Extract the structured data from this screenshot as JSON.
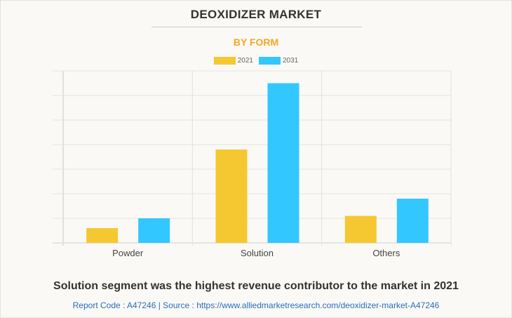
{
  "chart_data": {
    "type": "bar",
    "title": "DEOXIDIZER MARKET",
    "subtitle": "BY FORM",
    "categories": [
      "Powder",
      "Solution",
      "Others"
    ],
    "series": [
      {
        "name": "2021",
        "color": "#f5c832",
        "values": [
          0.6,
          3.8,
          1.1
        ]
      },
      {
        "name": "2031",
        "color": "#33c7ff",
        "values": [
          1.0,
          6.5,
          1.8
        ]
      }
    ],
    "xlabel": "",
    "ylabel": "",
    "ylim": [
      0,
      7
    ],
    "grid": true,
    "legend": "top-center"
  },
  "footer": {
    "note": "Solution segment was the highest revenue contributor to the market in 2021",
    "source": "Report Code : A47246  |  Source : https://www.alliedmarketresearch.com/deoxidizer-market-A47246"
  }
}
